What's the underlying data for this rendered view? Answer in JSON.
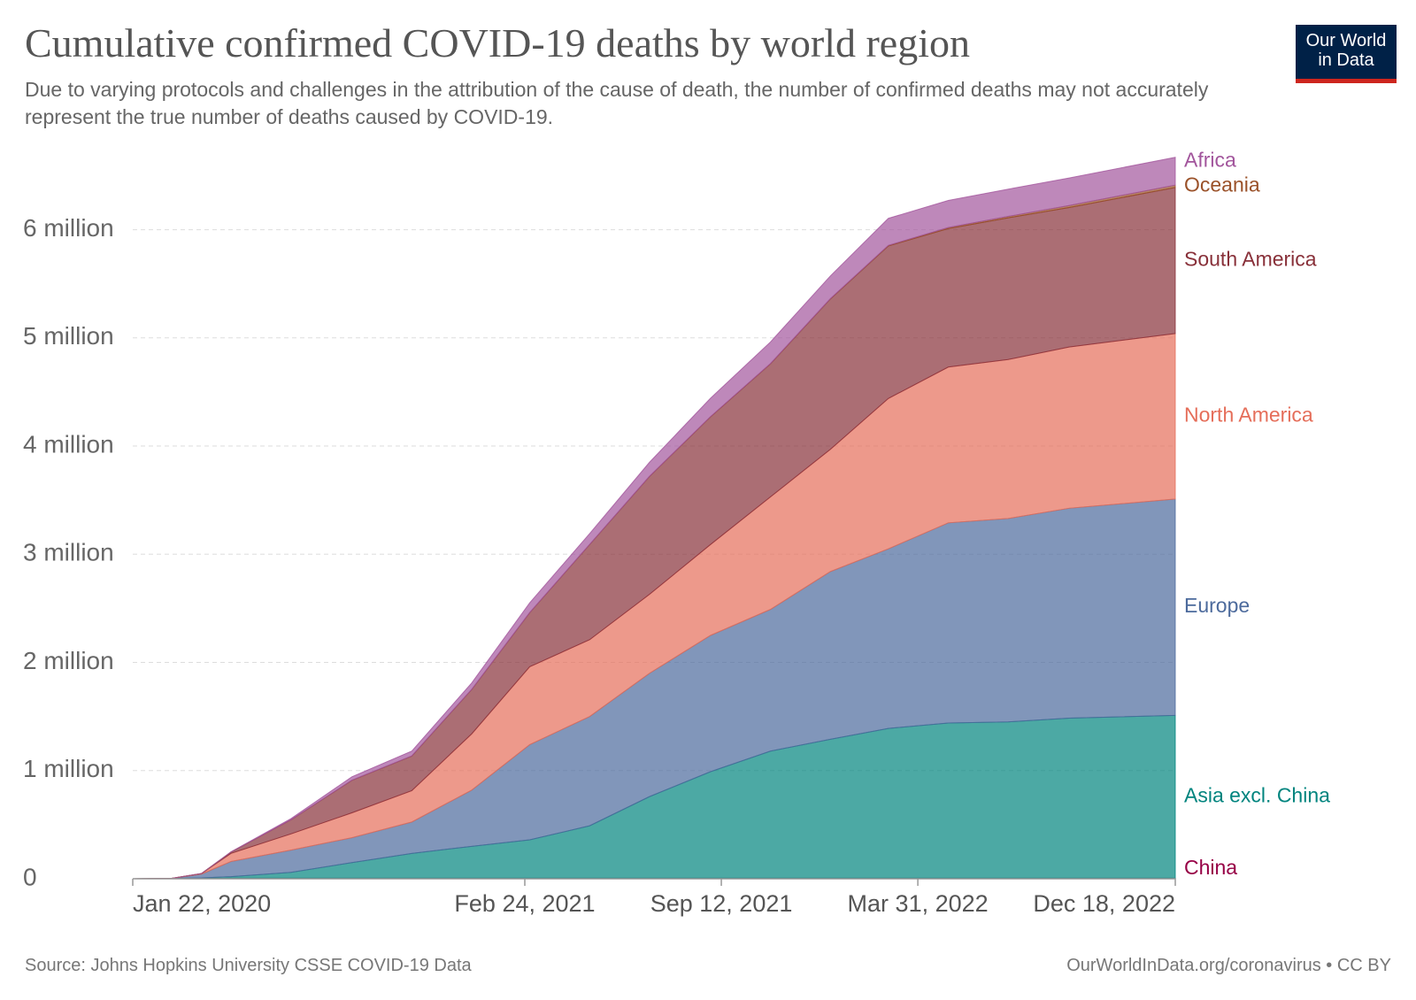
{
  "chart_data": {
    "type": "stacked-area",
    "title": "Cumulative confirmed COVID-19 deaths by world region",
    "subtitle": "Due to varying protocols and challenges in the attribution of the cause of death, the number of confirmed deaths may not accurately represent the true number of deaths caused by COVID-19.",
    "source": "Source: Johns Hopkins University CSSE COVID-19 Data",
    "credit": "OurWorldInData.org/coronavirus • CC BY",
    "logo": [
      "Our World",
      "in Data"
    ],
    "x": [
      "2020-01-22",
      "2020-03-01",
      "2020-04-01",
      "2020-05-01",
      "2020-07-01",
      "2020-09-01",
      "2020-11-01",
      "2021-01-01",
      "2021-03-01",
      "2021-05-01",
      "2021-07-01",
      "2021-09-01",
      "2021-11-01",
      "2022-01-01",
      "2022-03-01",
      "2022-05-01",
      "2022-07-01",
      "2022-09-01",
      "2022-12-18"
    ],
    "xlim": [
      "2020-01-22",
      "2022-12-18"
    ],
    "xticks": [
      {
        "value": "2020-01-22",
        "label": "Jan 22, 2020"
      },
      {
        "value": "2021-02-24",
        "label": "Feb 24, 2021"
      },
      {
        "value": "2021-09-12",
        "label": "Sep 12, 2021"
      },
      {
        "value": "2022-03-31",
        "label": "Mar 31, 2022"
      },
      {
        "value": "2022-12-18",
        "label": "Dec 18, 2022"
      }
    ],
    "ylim": [
      0,
      6700000
    ],
    "yticks": [
      0,
      {
        "value": 1000000,
        "label": "1 million"
      },
      {
        "value": 2000000,
        "label": "2 million"
      },
      {
        "value": 3000000,
        "label": "3 million"
      },
      {
        "value": 4000000,
        "label": "4 million"
      },
      {
        "value": 5000000,
        "label": "5 million"
      },
      {
        "value": 6000000,
        "label": "6 million"
      }
    ],
    "grid": true,
    "series": [
      {
        "name": "China",
        "color": "#970046",
        "values": [
          17,
          2870,
          3310,
          4633,
          4634,
          4634,
          4634,
          4788,
          4845,
          4851,
          4849,
          4849,
          4849,
          4849,
          4900,
          5200,
          5200,
          5200,
          5235
        ]
      },
      {
        "name": "Asia excl. China",
        "color": "#00847e",
        "values": [
          0,
          100,
          5000,
          15000,
          55000,
          145000,
          230000,
          295000,
          355000,
          485000,
          755000,
          985000,
          1175000,
          1285000,
          1385000,
          1435000,
          1445000,
          1480000,
          1505000
        ]
      },
      {
        "name": "Europe",
        "color": "#4c6a9c",
        "values": [
          0,
          40,
          35000,
          140000,
          205000,
          230000,
          290000,
          520000,
          880000,
          1010000,
          1140000,
          1260000,
          1310000,
          1550000,
          1660000,
          1850000,
          1880000,
          1940000,
          2000000
        ]
      },
      {
        "name": "North America",
        "color": "#e56e5a",
        "values": [
          0,
          2,
          5000,
          75000,
          150000,
          230000,
          290000,
          520000,
          720000,
          710000,
          730000,
          840000,
          1040000,
          1130000,
          1390000,
          1440000,
          1470000,
          1490000,
          1530000
        ]
      },
      {
        "name": "South America",
        "color": "#883039",
        "values": [
          0,
          0,
          300,
          12000,
          130000,
          300000,
          320000,
          410000,
          500000,
          880000,
          1090000,
          1180000,
          1230000,
          1390000,
          1410000,
          1280000,
          1310000,
          1290000,
          1350000
        ]
      },
      {
        "name": "Oceania",
        "color": "#9a5129",
        "values": [
          0,
          1,
          20,
          100,
          150,
          800,
          1000,
          1000,
          1000,
          1100,
          1200,
          2000,
          2300,
          2700,
          5000,
          10000,
          13000,
          18000,
          22000
        ]
      },
      {
        "name": "Africa",
        "color": "#a2559c",
        "values": [
          0,
          0,
          200,
          2000,
          11000,
          32000,
          45000,
          60000,
          90000,
          100000,
          130000,
          170000,
          200000,
          210000,
          250000,
          250000,
          252000,
          255000,
          257000
        ]
      }
    ]
  }
}
